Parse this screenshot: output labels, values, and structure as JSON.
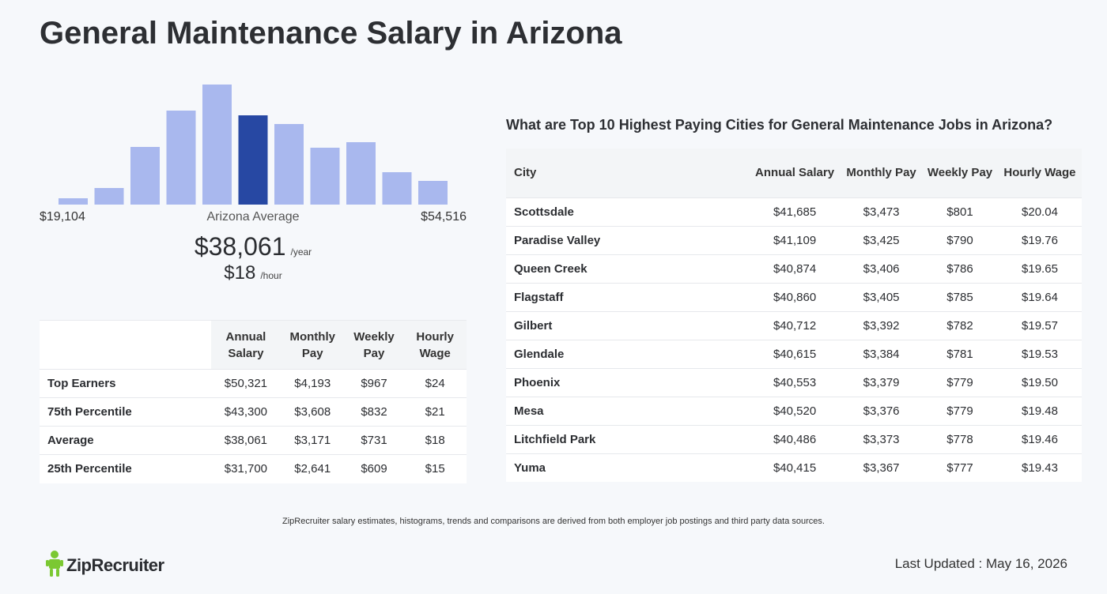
{
  "page_title": "General Maintenance Salary in Arizona",
  "chart_data": {
    "type": "bar",
    "values": [
      8,
      21,
      73,
      119,
      152,
      113,
      102,
      72,
      79,
      41,
      30
    ],
    "highlight_index": 5,
    "range_min_label": "$19,104",
    "range_max_label": "$54,516",
    "colors": {
      "bar": "#a9b8ee",
      "highlight": "#2748a3"
    }
  },
  "average": {
    "label": "Arizona Average",
    "yearly": "$38,061",
    "yearly_unit": "/year",
    "hourly": "$18",
    "hourly_unit": "/hour"
  },
  "percentile_table": {
    "headers": [
      "",
      "Annual Salary",
      "Monthly Pay",
      "Weekly Pay",
      "Hourly Wage"
    ],
    "rows": [
      {
        "label": "Top Earners",
        "annual": "$50,321",
        "monthly": "$4,193",
        "weekly": "$967",
        "hourly": "$24"
      },
      {
        "label": "75th Percentile",
        "annual": "$43,300",
        "monthly": "$3,608",
        "weekly": "$832",
        "hourly": "$21"
      },
      {
        "label": "Average",
        "annual": "$38,061",
        "monthly": "$3,171",
        "weekly": "$731",
        "hourly": "$18"
      },
      {
        "label": "25th Percentile",
        "annual": "$31,700",
        "monthly": "$2,641",
        "weekly": "$609",
        "hourly": "$15"
      }
    ]
  },
  "cities": {
    "title": "What are Top 10 Highest Paying Cities for General Maintenance Jobs in Arizona?",
    "headers": [
      "City",
      "Annual Salary",
      "Monthly Pay",
      "Weekly Pay",
      "Hourly Wage"
    ],
    "rows": [
      {
        "city": "Scottsdale",
        "annual": "$41,685",
        "monthly": "$3,473",
        "weekly": "$801",
        "hourly": "$20.04"
      },
      {
        "city": "Paradise Valley",
        "annual": "$41,109",
        "monthly": "$3,425",
        "weekly": "$790",
        "hourly": "$19.76"
      },
      {
        "city": "Queen Creek",
        "annual": "$40,874",
        "monthly": "$3,406",
        "weekly": "$786",
        "hourly": "$19.65"
      },
      {
        "city": "Flagstaff",
        "annual": "$40,860",
        "monthly": "$3,405",
        "weekly": "$785",
        "hourly": "$19.64"
      },
      {
        "city": "Gilbert",
        "annual": "$40,712",
        "monthly": "$3,392",
        "weekly": "$782",
        "hourly": "$19.57"
      },
      {
        "city": "Glendale",
        "annual": "$40,615",
        "monthly": "$3,384",
        "weekly": "$781",
        "hourly": "$19.53"
      },
      {
        "city": "Phoenix",
        "annual": "$40,553",
        "monthly": "$3,379",
        "weekly": "$779",
        "hourly": "$19.50"
      },
      {
        "city": "Mesa",
        "annual": "$40,520",
        "monthly": "$3,376",
        "weekly": "$779",
        "hourly": "$19.48"
      },
      {
        "city": "Litchfield Park",
        "annual": "$40,486",
        "monthly": "$3,373",
        "weekly": "$778",
        "hourly": "$19.46"
      },
      {
        "city": "Yuma",
        "annual": "$40,415",
        "monthly": "$3,367",
        "weekly": "$777",
        "hourly": "$19.43"
      }
    ]
  },
  "footnote": "ZipRecruiter salary estimates, histograms, trends and comparisons are derived from both employer job postings and third party data sources.",
  "logo_text": "ZipRecruiter",
  "logo_icon": "ziprecruiter-mascot-icon",
  "last_updated": "Last Updated : May 16, 2026"
}
